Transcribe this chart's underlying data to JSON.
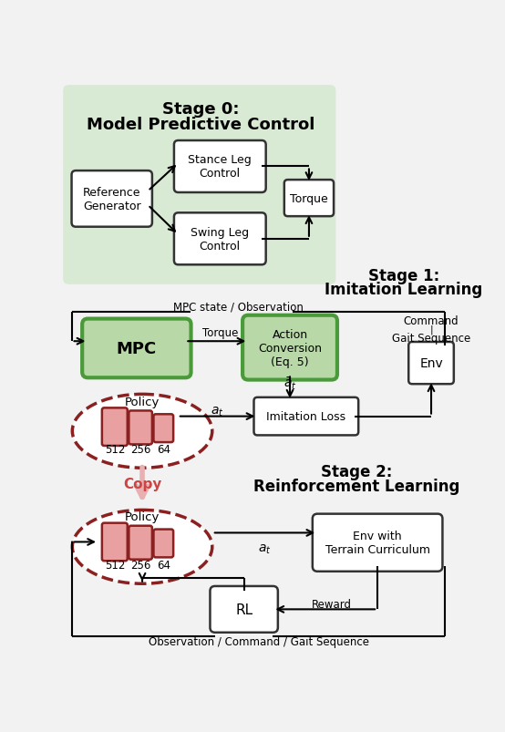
{
  "bg_color": "#f2f2f2",
  "stage0_bg": "#d8ead4",
  "green_box_fill": "#b8d8a8",
  "green_box_border": "#4a9a3a",
  "white_box_fill": "#ffffff",
  "white_box_border": "#333333",
  "red_dashed_color": "#8b2020",
  "red_box_fill": "#e8a0a0",
  "red_box_border": "#8b2020",
  "copy_color": "#cc4444",
  "copy_arrow_color": "#e8b0b0",
  "arrow_color": "#000000",
  "text_color": "#000000",
  "stage0_title_line1": "Stage 0:",
  "stage0_title_line2": "Model Predictive Control",
  "stage1_title_line1": "Stage 1:",
  "stage1_title_line2": "Imitation Learning",
  "stage2_title_line1": "Stage 2:",
  "stage2_title_line2": "Reinforcement Learning"
}
